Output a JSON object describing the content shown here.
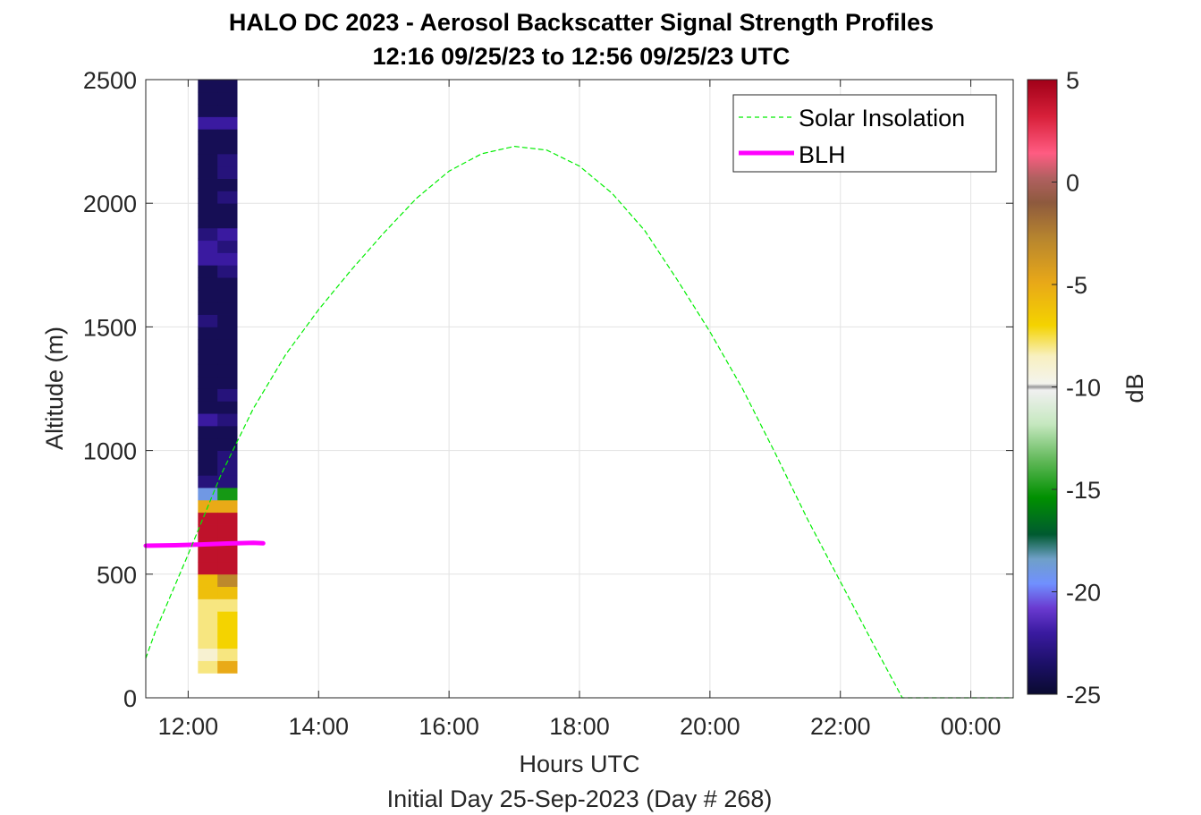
{
  "chart_data": {
    "type": "heatmap",
    "title": "HALO DC 2023 - Aerosol Backscatter Signal Strength Profiles",
    "subtitle": "12:16 09/25/23 to 12:56 09/25/23  UTC",
    "xlabel": "Hours UTC",
    "x_sublabel": "Initial Day 25-Sep-2023 (Day # 268)",
    "ylabel": "Altitude (m)",
    "xlim_hours": [
      11.35,
      24.65
    ],
    "ylim": [
      0,
      2500
    ],
    "x_ticks": [
      12,
      14,
      16,
      18,
      20,
      22,
      24
    ],
    "x_tick_labels": [
      "12:00",
      "14:00",
      "16:00",
      "18:00",
      "20:00",
      "22:00",
      "00:00"
    ],
    "y_ticks": [
      0,
      500,
      1000,
      1500,
      2000,
      2500
    ],
    "y_tick_labels": [
      "0",
      "500",
      "1000",
      "1500",
      "2000",
      "2500"
    ],
    "grid": true,
    "colorbar": {
      "label": "dB",
      "range": [
        -25,
        5
      ],
      "ticks": [
        5,
        0,
        -5,
        -10,
        -15,
        -20,
        -25
      ],
      "tick_labels": [
        "5",
        "0",
        "-5",
        "-10",
        "-15",
        "-20",
        "-25"
      ]
    },
    "legend": {
      "placement": "top-right",
      "entries": [
        {
          "label": "Solar Insolation",
          "color": "#00ee00",
          "style": "dashed"
        },
        {
          "label": "BLH",
          "color": "#ff00ff",
          "style": "solid"
        }
      ]
    },
    "profiles": {
      "time_columns_hours": [
        12.3,
        12.6
      ],
      "column_width_hours": 0.3,
      "bin_start_m": 100,
      "bin_size_m": 50,
      "columns": [
        [
          -8,
          -9,
          -8,
          -8,
          -8,
          -8,
          -6,
          -6,
          4,
          4,
          4,
          4,
          4,
          -5,
          -19,
          -23,
          -24,
          -24,
          -24,
          -24,
          -22,
          -24,
          -24,
          -24,
          -24,
          -24,
          -24,
          -24,
          -23,
          -24,
          -24,
          -24,
          -24,
          -22,
          -22,
          -23,
          -24,
          -24,
          -24,
          -24,
          -24,
          -24,
          -24,
          -24,
          -22,
          -24,
          -24,
          -24,
          -23
        ],
        [
          -5,
          -8,
          -7,
          -7,
          -7,
          -8,
          -6,
          -3,
          4,
          4,
          4,
          4,
          4,
          -5,
          -15,
          -23,
          -23,
          -23,
          -24,
          -24,
          -23,
          -24,
          -23,
          -24,
          -24,
          -24,
          -24,
          -24,
          -24,
          -24,
          -24,
          -24,
          -23,
          -22,
          -23,
          -22,
          -24,
          -24,
          -23,
          -24,
          -23,
          -23,
          -24,
          -24,
          -22,
          -24,
          -24,
          -24,
          -23
        ]
      ]
    },
    "series": [
      {
        "name": "BLH",
        "color": "#ff00ff",
        "x": [
          11.35,
          11.8,
          12.2,
          12.6,
          13.0,
          13.15
        ],
        "y": [
          615,
          617,
          620,
          624,
          627,
          625
        ]
      },
      {
        "name": "Solar Insolation",
        "color": "#00ee00",
        "x": [
          11.35,
          11.5,
          12.0,
          12.5,
          13.0,
          13.5,
          14.0,
          14.5,
          15.0,
          15.5,
          16.0,
          16.5,
          17.0,
          17.5,
          18.0,
          18.5,
          19.0,
          19.5,
          20.0,
          20.5,
          21.0,
          21.5,
          22.0,
          22.5,
          22.95,
          23.5,
          24.0,
          24.65
        ],
        "y": [
          160,
          270,
          580,
          900,
          1170,
          1390,
          1570,
          1730,
          1880,
          2020,
          2130,
          2200,
          2230,
          2215,
          2150,
          2040,
          1890,
          1690,
          1480,
          1250,
          990,
          720,
          470,
          220,
          0,
          0,
          0,
          0
        ]
      }
    ]
  }
}
